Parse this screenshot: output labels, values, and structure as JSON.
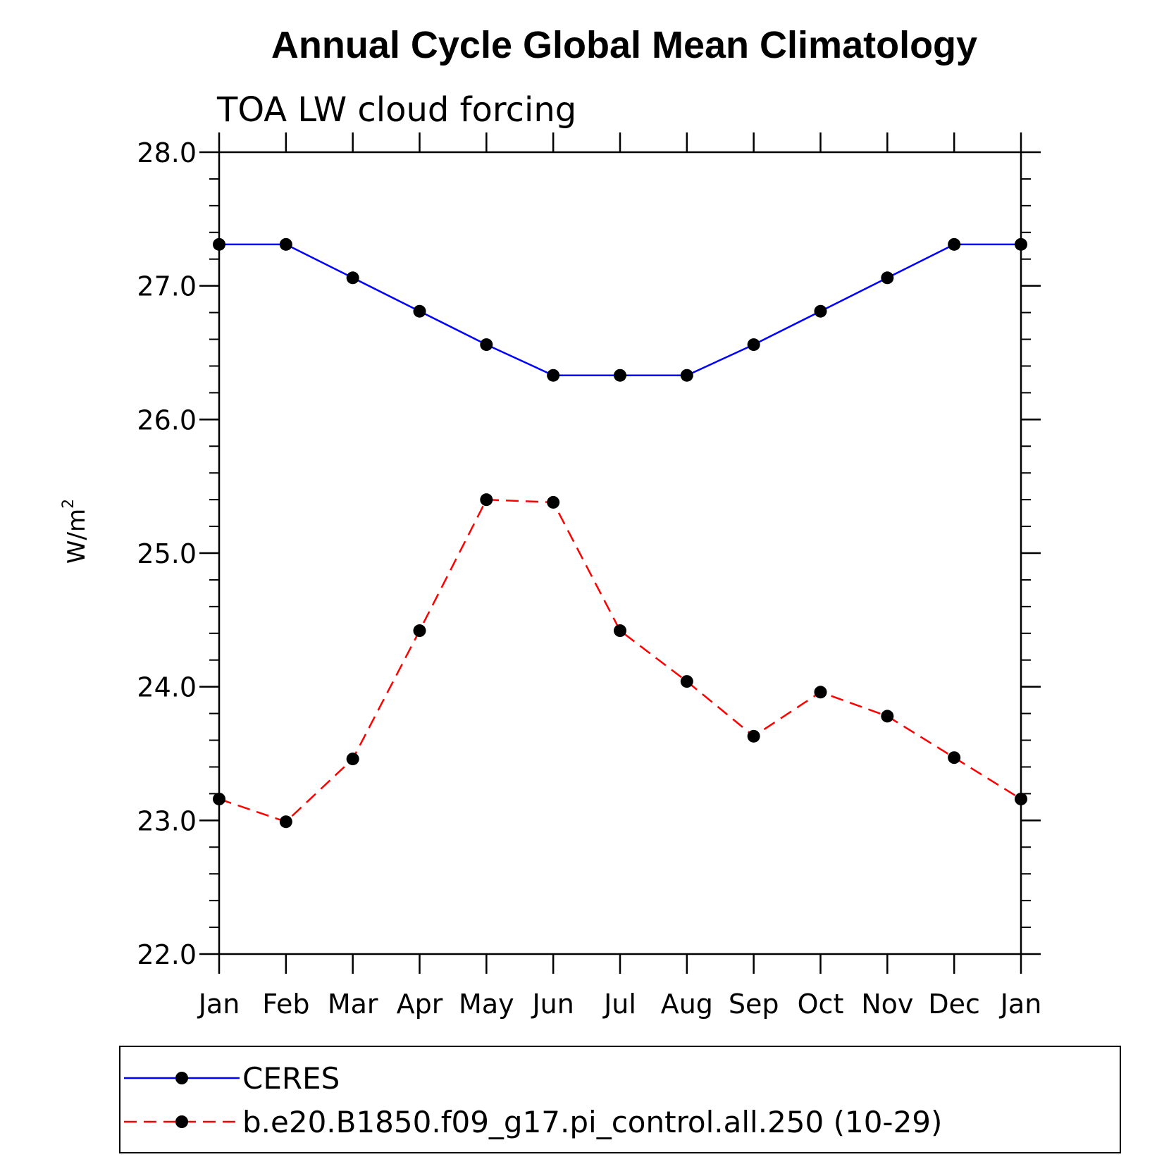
{
  "chart_data": {
    "type": "line",
    "title": "Annual Cycle Global Mean Climatology",
    "subtitle": "TOA LW cloud forcing",
    "ylabel": "W/m",
    "ylabel_superscript": "2",
    "xlabel": "",
    "categories": [
      "Jan",
      "Feb",
      "Mar",
      "Apr",
      "May",
      "Jun",
      "Jul",
      "Aug",
      "Sep",
      "Oct",
      "Nov",
      "Dec",
      "Jan"
    ],
    "ylim": [
      22.0,
      28.0
    ],
    "yticks": [
      "22.0",
      "23.0",
      "24.0",
      "25.0",
      "26.0",
      "27.0",
      "28.0"
    ],
    "grid": false,
    "legend_position": "bottom",
    "series": [
      {
        "name": "CERES",
        "color": "#0000ff",
        "style": "solid",
        "values": [
          27.31,
          27.31,
          27.06,
          26.81,
          26.56,
          26.33,
          26.33,
          26.33,
          26.56,
          26.81,
          27.06,
          27.31,
          27.31
        ]
      },
      {
        "name": "b.e20.B1850.f09_g17.pi_control.all.250 (10-29)",
        "color": "#ff0000",
        "style": "dashed",
        "values": [
          23.16,
          22.99,
          23.46,
          24.42,
          25.4,
          25.38,
          24.42,
          24.04,
          23.63,
          23.96,
          23.78,
          23.47,
          23.16
        ]
      }
    ]
  }
}
